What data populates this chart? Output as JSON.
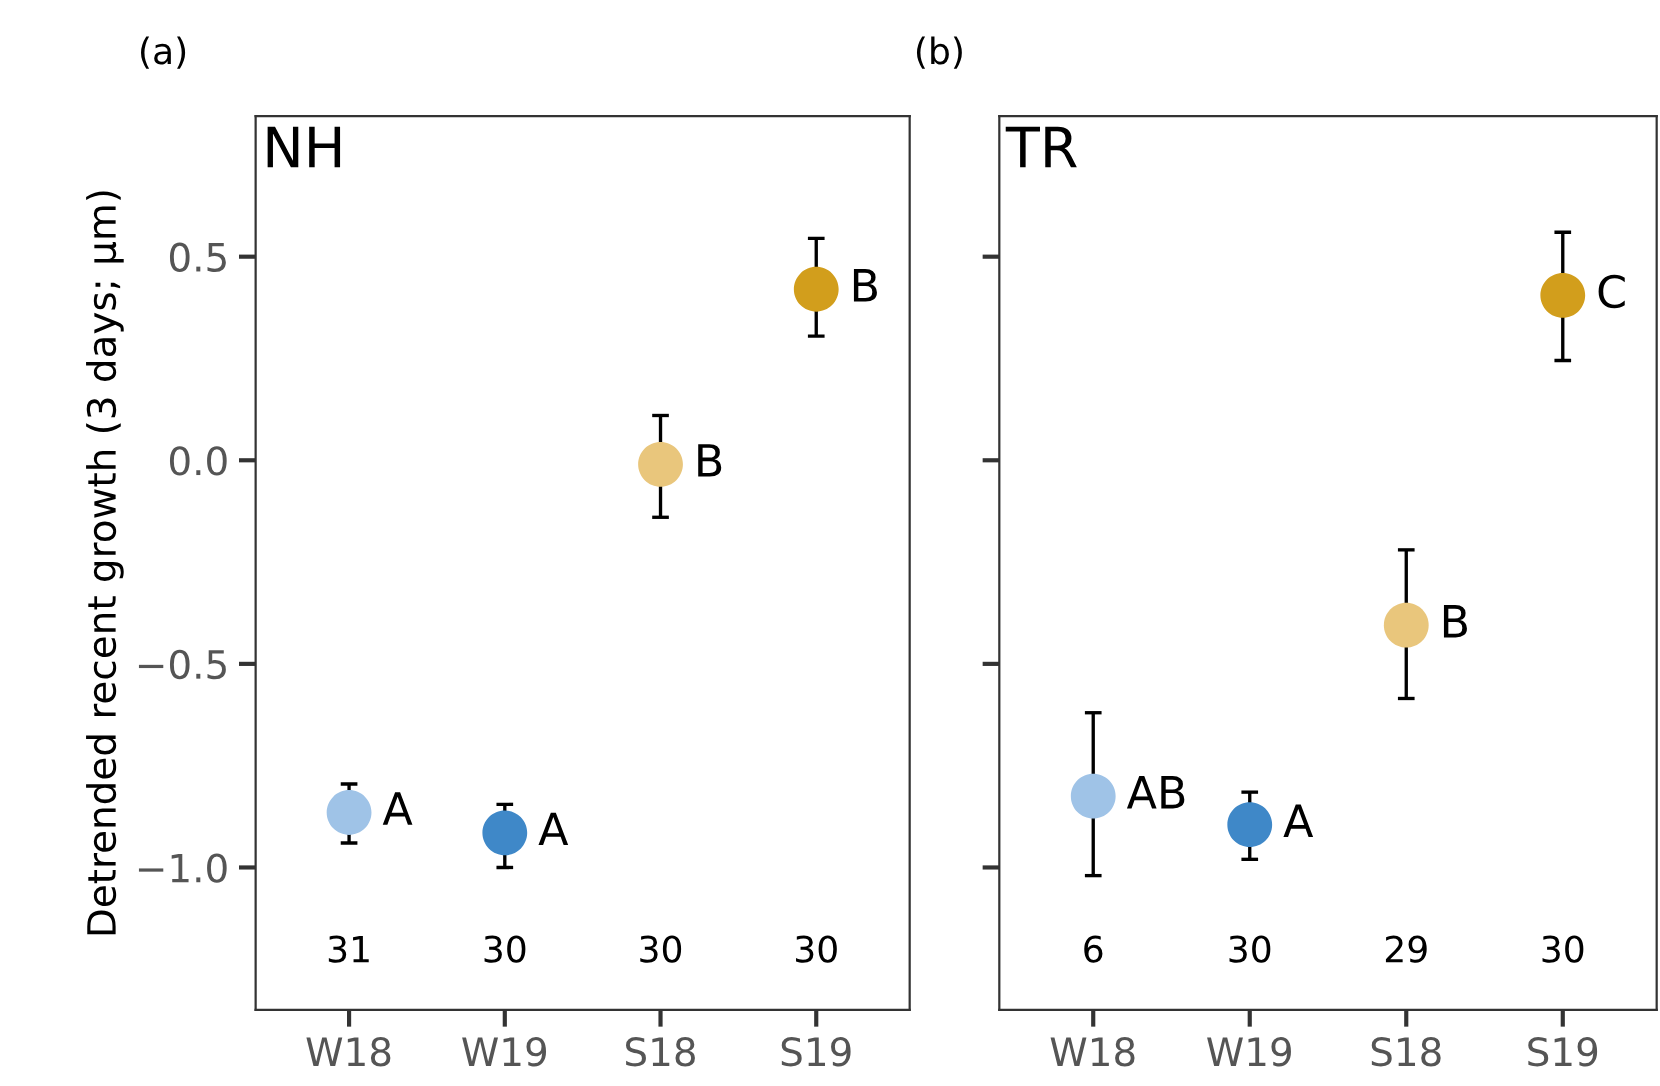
{
  "chart_data": [
    {
      "type": "scatter",
      "title": "(a)",
      "subtitle": "NH",
      "ylabel": "Detrended recent growth (3 days; µm)",
      "categories": [
        "W18",
        "W19",
        "S18",
        "S19"
      ],
      "values": [
        -0.865,
        -0.915,
        -0.01,
        0.42
      ],
      "colors": [
        "#9fc3e7",
        "#3f88c8",
        "#e9c67c",
        "#d29e1c"
      ],
      "errors": [
        [
          -0.94,
          -0.795
        ],
        [
          -1.0,
          -0.845
        ],
        [
          -0.14,
          0.11
        ],
        [
          0.305,
          0.545
        ]
      ],
      "value_labels": [
        "A",
        "A",
        "B",
        "B"
      ],
      "annotations": [
        "31",
        "30",
        "30",
        "30"
      ],
      "ylim": [
        -1.35,
        0.845
      ],
      "yticks": [
        {
          "value": -1.0,
          "label": "−1.0"
        },
        {
          "value": -0.5,
          "label": "−0.5"
        },
        {
          "value": 0.0,
          "label": "0.0"
        },
        0.5
      ],
      "grid": false
    },
    {
      "type": "scatter",
      "title": "(b)",
      "subtitle": "TR",
      "categories": [
        "W18",
        "W19",
        "S18",
        "S19"
      ],
      "values": [
        -0.825,
        -0.895,
        -0.405,
        0.405
      ],
      "colors": [
        "#9fc3e7",
        "#3f88c8",
        "#e9c67c",
        "#d29e1c"
      ],
      "errors": [
        [
          -1.02,
          -0.62
        ],
        [
          -0.98,
          -0.815
        ],
        [
          -0.585,
          -0.22
        ],
        [
          0.245,
          0.56
        ]
      ],
      "value_labels": [
        "AB",
        "A",
        "B",
        "C"
      ],
      "annotations": [
        "6",
        "30",
        "29",
        "30"
      ],
      "ylim": [
        -1.35,
        0.845
      ],
      "yticks": [
        {
          "value": -1.0,
          "label": null
        },
        {
          "value": -0.5,
          "label": null
        },
        {
          "value": 0.0,
          "label": null
        },
        {
          "value": 0.5,
          "label": null
        }
      ],
      "grid": false,
      "tick_labels": "x"
    }
  ]
}
